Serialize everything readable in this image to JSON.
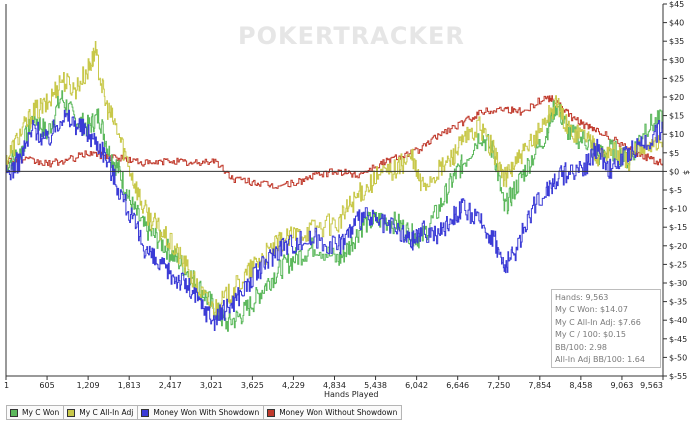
{
  "watermark": "POKERTRACKER",
  "stats": [
    "Hands: 9,563",
    "My C Won: $14.07",
    "My C All-In Adj: $7.66",
    "My C / 100: $0.15",
    "BB/100: 2.98",
    "All-In Adj BB/100: 1.64"
  ],
  "legend": [
    {
      "label": "My C Won",
      "color": "#5cb85c"
    },
    {
      "label": "My C All-In Adj",
      "color": "#c8c84a"
    },
    {
      "label": "Money Won With Showdown",
      "color": "#3b3bd6"
    },
    {
      "label": "Money Won Without Showdown",
      "color": "#c0392b"
    }
  ],
  "chart_data": {
    "type": "line",
    "xlabel": "Hands Played",
    "ylabel": "$",
    "xlim": [
      1,
      9563
    ],
    "ylim": [
      -55,
      45
    ],
    "x_ticks": [
      "1",
      "605",
      "1,209",
      "1,813",
      "2,417",
      "3,021",
      "3,625",
      "4,229",
      "4,834",
      "5,438",
      "6,042",
      "6,646",
      "7,250",
      "7,854",
      "8,458",
      "9,063",
      "9,563"
    ],
    "y_ticks": [
      "$45",
      "$40",
      "$35",
      "$30",
      "$25",
      "$20",
      "$15",
      "$10",
      "$5",
      "$0",
      "$-5",
      "$-10",
      "$-15",
      "$-20",
      "$-25",
      "$-30",
      "$-35",
      "$-40",
      "$-45",
      "$-50",
      "$-55"
    ],
    "grid": false,
    "legend_placement": "bottom-left",
    "series": [
      {
        "name": "My C Won",
        "color": "#5cb85c",
        "points": [
          [
            1,
            2
          ],
          [
            200,
            5
          ],
          [
            400,
            15
          ],
          [
            600,
            10
          ],
          [
            800,
            20
          ],
          [
            1000,
            14
          ],
          [
            1200,
            12
          ],
          [
            1350,
            15
          ],
          [
            1500,
            5
          ],
          [
            1650,
            0
          ],
          [
            1800,
            -8
          ],
          [
            2000,
            -15
          ],
          [
            2200,
            -18
          ],
          [
            2400,
            -22
          ],
          [
            2600,
            -26
          ],
          [
            2800,
            -31
          ],
          [
            3000,
            -36
          ],
          [
            3200,
            -41
          ],
          [
            3400,
            -39
          ],
          [
            3600,
            -35
          ],
          [
            3800,
            -30
          ],
          [
            4000,
            -26
          ],
          [
            4229,
            -23
          ],
          [
            4500,
            -20
          ],
          [
            4834,
            -24
          ],
          [
            5000,
            -20
          ],
          [
            5200,
            -14
          ],
          [
            5438,
            -13
          ],
          [
            5700,
            -14
          ],
          [
            5900,
            -17
          ],
          [
            6042,
            -18
          ],
          [
            6300,
            -10
          ],
          [
            6500,
            -2
          ],
          [
            6646,
            2
          ],
          [
            6900,
            10
          ],
          [
            7100,
            5
          ],
          [
            7250,
            -10
          ],
          [
            7400,
            -5
          ],
          [
            7600,
            2
          ],
          [
            7854,
            10
          ],
          [
            8000,
            18
          ],
          [
            8200,
            10
          ],
          [
            8458,
            8
          ],
          [
            8600,
            4
          ],
          [
            8800,
            6
          ],
          [
            9063,
            3
          ],
          [
            9300,
            12
          ],
          [
            9563,
            14
          ]
        ]
      },
      {
        "name": "My C All-In Adj",
        "color": "#c8c84a",
        "points": [
          [
            1,
            3
          ],
          [
            200,
            10
          ],
          [
            400,
            16
          ],
          [
            600,
            18
          ],
          [
            800,
            25
          ],
          [
            1000,
            22
          ],
          [
            1209,
            28
          ],
          [
            1300,
            32
          ],
          [
            1450,
            18
          ],
          [
            1600,
            12
          ],
          [
            1813,
            0
          ],
          [
            2000,
            -10
          ],
          [
            2200,
            -15
          ],
          [
            2417,
            -20
          ],
          [
            2600,
            -25
          ],
          [
            2800,
            -32
          ],
          [
            3021,
            -37
          ],
          [
            3200,
            -34
          ],
          [
            3400,
            -30
          ],
          [
            3625,
            -25
          ],
          [
            3800,
            -22
          ],
          [
            4000,
            -19
          ],
          [
            4229,
            -17
          ],
          [
            4500,
            -15
          ],
          [
            4834,
            -14
          ],
          [
            5000,
            -9
          ],
          [
            5200,
            -5
          ],
          [
            5438,
            -1
          ],
          [
            5700,
            1
          ],
          [
            5900,
            4
          ],
          [
            6042,
            -4
          ],
          [
            6300,
            0
          ],
          [
            6500,
            4
          ],
          [
            6646,
            8
          ],
          [
            6900,
            12
          ],
          [
            7100,
            5
          ],
          [
            7250,
            -2
          ],
          [
            7400,
            2
          ],
          [
            7600,
            6
          ],
          [
            7854,
            14
          ],
          [
            8000,
            18
          ],
          [
            8200,
            11
          ],
          [
            8458,
            10
          ],
          [
            8600,
            4
          ],
          [
            8800,
            6
          ],
          [
            9063,
            3
          ],
          [
            9300,
            8
          ],
          [
            9563,
            7.66
          ]
        ]
      },
      {
        "name": "Money Won With Showdown",
        "color": "#3b3bd6",
        "points": [
          [
            1,
            -1
          ],
          [
            200,
            3
          ],
          [
            400,
            12
          ],
          [
            600,
            8
          ],
          [
            800,
            15
          ],
          [
            1000,
            13
          ],
          [
            1209,
            10
          ],
          [
            1400,
            6
          ],
          [
            1600,
            -3
          ],
          [
            1813,
            -12
          ],
          [
            2000,
            -20
          ],
          [
            2200,
            -25
          ],
          [
            2417,
            -28
          ],
          [
            2600,
            -30
          ],
          [
            2800,
            -35
          ],
          [
            3021,
            -40
          ],
          [
            3200,
            -37
          ],
          [
            3400,
            -33
          ],
          [
            3625,
            -28
          ],
          [
            3800,
            -24
          ],
          [
            4000,
            -20
          ],
          [
            4229,
            -19
          ],
          [
            4500,
            -18
          ],
          [
            4834,
            -20
          ],
          [
            5000,
            -16
          ],
          [
            5200,
            -12
          ],
          [
            5438,
            -14
          ],
          [
            5700,
            -16
          ],
          [
            5900,
            -19
          ],
          [
            6042,
            -16
          ],
          [
            6300,
            -17
          ],
          [
            6500,
            -12
          ],
          [
            6646,
            -10
          ],
          [
            6900,
            -14
          ],
          [
            7100,
            -18
          ],
          [
            7250,
            -26
          ],
          [
            7400,
            -22
          ],
          [
            7600,
            -12
          ],
          [
            7854,
            -5
          ],
          [
            8000,
            -2
          ],
          [
            8200,
            0
          ],
          [
            8458,
            2
          ],
          [
            8600,
            6
          ],
          [
            8800,
            0
          ],
          [
            9063,
            5
          ],
          [
            9300,
            8
          ],
          [
            9563,
            12
          ]
        ]
      },
      {
        "name": "Money Won Without Showdown",
        "color": "#c0392b",
        "points": [
          [
            1,
            3
          ],
          [
            300,
            3
          ],
          [
            605,
            2
          ],
          [
            900,
            3
          ],
          [
            1209,
            5
          ],
          [
            1500,
            4
          ],
          [
            1813,
            3
          ],
          [
            2100,
            2
          ],
          [
            2417,
            3
          ],
          [
            2700,
            2
          ],
          [
            3021,
            3
          ],
          [
            3300,
            -2
          ],
          [
            3625,
            -3
          ],
          [
            3900,
            -4
          ],
          [
            4229,
            -3
          ],
          [
            4500,
            -1
          ],
          [
            4834,
            0
          ],
          [
            5100,
            -1
          ],
          [
            5438,
            2
          ],
          [
            5700,
            4
          ],
          [
            6042,
            6
          ],
          [
            6300,
            10
          ],
          [
            6646,
            13
          ],
          [
            6900,
            16
          ],
          [
            7250,
            17
          ],
          [
            7500,
            16
          ],
          [
            7854,
            20
          ],
          [
            8000,
            19
          ],
          [
            8200,
            15
          ],
          [
            8458,
            12
          ],
          [
            8700,
            10
          ],
          [
            9063,
            6
          ],
          [
            9300,
            4
          ],
          [
            9563,
            2
          ]
        ]
      }
    ]
  }
}
